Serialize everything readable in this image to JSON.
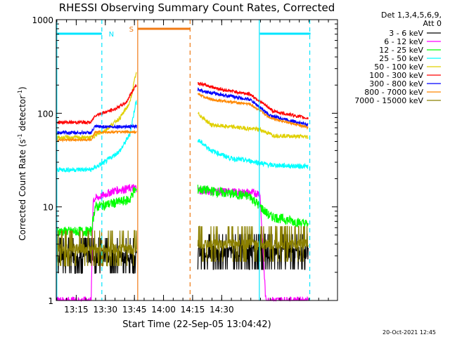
{
  "chart_data": {
    "type": "line",
    "title": "RHESSI Observing Summary Count Rates, Corrected",
    "xlabel": "Start Time (22-Sep-05 13:04:42)",
    "ylabel": "Corrected Count Rate (s",
    "ylabel_exp1": "-1",
    "ylabel_mid": " detector",
    "ylabel_exp2": "-1",
    "ylabel_end": ")",
    "yscale": "log",
    "ylim": [
      1,
      1000
    ],
    "xlim_min": [
      0,
      145
    ],
    "x_ticks": [
      {
        "min": 10.3,
        "label": "13:15"
      },
      {
        "min": 25.3,
        "label": "13:30"
      },
      {
        "min": 40.3,
        "label": "13:45"
      },
      {
        "min": 55.3,
        "label": "14:00"
      },
      {
        "min": 70.3,
        "label": "14:15"
      },
      {
        "min": 85.3,
        "label": "14:30"
      }
    ],
    "y_ticks": [
      {
        "value": 1,
        "label": "1"
      },
      {
        "value": 10,
        "label": "10"
      },
      {
        "value": 100,
        "label": "100"
      },
      {
        "value": 1000,
        "label": "1000"
      }
    ],
    "legend_header": [
      "Det 1,3,4,5,6,9,",
      "Att 0"
    ],
    "date_stamp": "20-Oct-2021 12:45",
    "flag_markers": [
      {
        "label": "N",
        "color": "#00e5ff",
        "start": 0.5,
        "end": 23.5
      },
      {
        "label": "S",
        "color": "#f07a14",
        "start": 42,
        "end": 69
      }
    ],
    "night_bar_right": {
      "start": 105,
      "end": 130
    },
    "vlines": [
      {
        "min": 0.3,
        "color": "#00e5ff",
        "style": "solid"
      },
      {
        "min": 23.5,
        "color": "#00e5ff",
        "style": "dashed"
      },
      {
        "min": 42,
        "color": "#f07a14",
        "style": "solid"
      },
      {
        "min": 69,
        "color": "#f07a14",
        "style": "dashed"
      },
      {
        "min": 104.7,
        "color": "#00e5ff",
        "style": "solid"
      },
      {
        "min": 130.7,
        "color": "#00e5ff",
        "style": "dashed"
      }
    ],
    "series": [
      {
        "name": "3 - 6 keV",
        "color": "#000000",
        "level1": 3,
        "level2": 3.3,
        "noise": 0.35,
        "kind": "low"
      },
      {
        "name": "6 - 12 keV",
        "color": "#ff00ff",
        "seg1": [
          [
            0,
            1
          ],
          [
            18,
            1
          ],
          [
            19,
            12
          ],
          [
            30,
            15
          ],
          [
            40,
            16
          ]
        ],
        "seg2": [
          [
            73,
            15
          ],
          [
            105,
            14
          ],
          [
            108,
            1
          ],
          [
            113,
            1
          ]
        ],
        "noise": 0.05
      },
      {
        "name": "12 - 25 keV",
        "color": "#00ff00",
        "seg1": [
          [
            0,
            5.5
          ],
          [
            18,
            5.5
          ],
          [
            20,
            10
          ],
          [
            38,
            12
          ],
          [
            40,
            15
          ]
        ],
        "seg2": [
          [
            73,
            15.5
          ],
          [
            100,
            13
          ],
          [
            110,
            8
          ],
          [
            130,
            6.5
          ]
        ],
        "noise": 0.06
      },
      {
        "name": "25 - 50 keV",
        "color": "#00ffff",
        "seg1": [
          [
            0,
            25
          ],
          [
            18,
            25
          ],
          [
            25,
            30
          ],
          [
            33,
            40
          ],
          [
            38,
            60
          ],
          [
            41,
            130
          ]
        ],
        "seg2": [
          [
            73,
            52
          ],
          [
            80,
            40
          ],
          [
            90,
            33
          ],
          [
            100,
            31
          ],
          [
            110,
            28
          ],
          [
            130,
            27
          ]
        ],
        "noise": 0.03
      },
      {
        "name": "50 - 100 keV",
        "color": "#e0d000",
        "seg1": [
          [
            0,
            55
          ],
          [
            18,
            55
          ],
          [
            25,
            65
          ],
          [
            33,
            90
          ],
          [
            38,
            130
          ],
          [
            41,
            260
          ]
        ],
        "seg2": [
          [
            73,
            100
          ],
          [
            80,
            75
          ],
          [
            95,
            70
          ],
          [
            105,
            67
          ],
          [
            112,
            58
          ],
          [
            130,
            56
          ]
        ],
        "noise": 0.025
      },
      {
        "name": "100 - 300 keV",
        "color": "#ff0000",
        "seg1": [
          [
            0,
            80
          ],
          [
            18,
            80
          ],
          [
            20,
            95
          ],
          [
            30,
            110
          ],
          [
            36,
            130
          ],
          [
            41,
            200
          ]
        ],
        "seg2": [
          [
            73,
            210
          ],
          [
            85,
            180
          ],
          [
            100,
            160
          ],
          [
            112,
            105
          ],
          [
            130,
            88
          ]
        ],
        "noise": 0.02
      },
      {
        "name": "300 - 800 keV",
        "color": "#0000ff",
        "seg1": [
          [
            0,
            62
          ],
          [
            18,
            62
          ],
          [
            20,
            72
          ],
          [
            41,
            72
          ]
        ],
        "seg2": [
          [
            73,
            180
          ],
          [
            80,
            165
          ],
          [
            100,
            140
          ],
          [
            110,
            95
          ],
          [
            130,
            75
          ]
        ],
        "noise": 0.02
      },
      {
        "name": "800 - 7000 keV",
        "color": "#ff8800",
        "seg1": [
          [
            0,
            52
          ],
          [
            18,
            52
          ],
          [
            20,
            63
          ],
          [
            41,
            63
          ]
        ],
        "seg2": [
          [
            73,
            160
          ],
          [
            80,
            140
          ],
          [
            100,
            125
          ],
          [
            110,
            90
          ],
          [
            130,
            70
          ]
        ],
        "noise": 0.015
      },
      {
        "name": "7000 - 15000 keV",
        "color": "#8b8000",
        "level1": 3.6,
        "level2": 4,
        "noise": 0.25,
        "kind": "low"
      }
    ]
  }
}
